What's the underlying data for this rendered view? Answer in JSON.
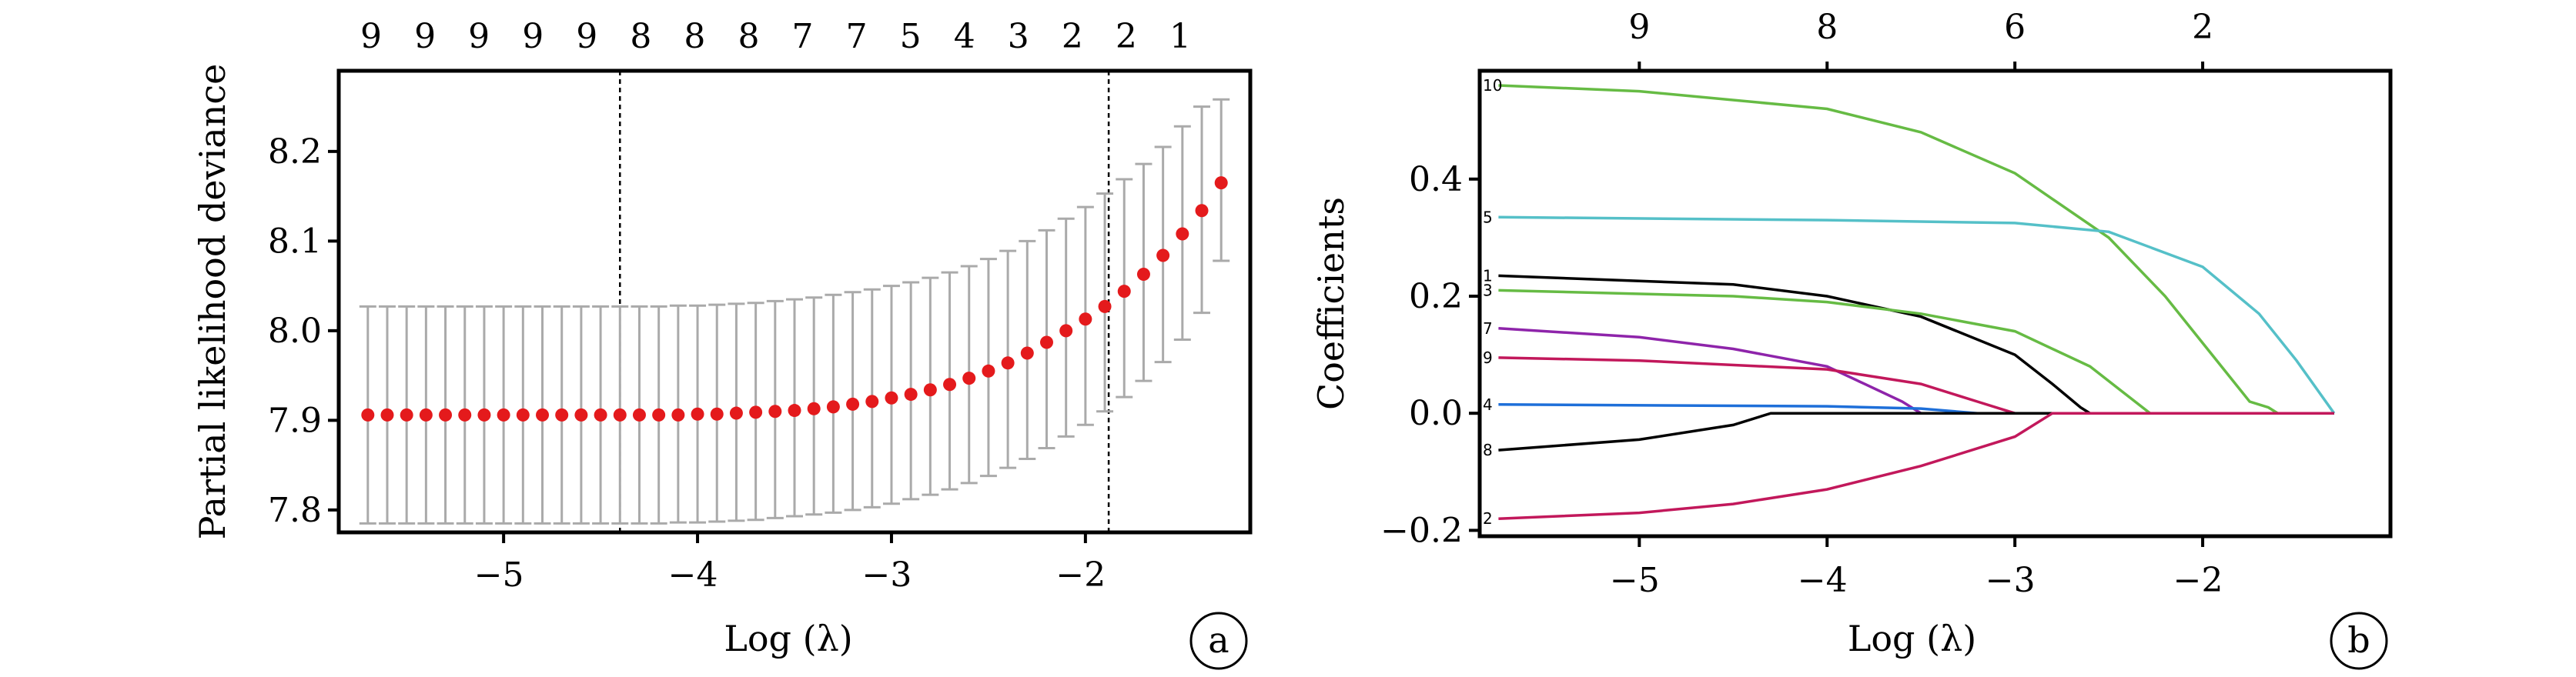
{
  "chart_data": [
    {
      "type": "scatter",
      "panel_label": "a",
      "xlabel": "Log (λ)",
      "ylabel": "Partial likelihood deviance",
      "xlim": [
        -5.85,
        -1.15
      ],
      "ylim": [
        7.775,
        8.29
      ],
      "x_ticks": [
        -5,
        -4,
        -3,
        -2
      ],
      "y_ticks": [
        7.8,
        7.9,
        8.0,
        8.1,
        8.2
      ],
      "top_axis_labels": [
        "9",
        "9",
        "9",
        "9",
        "9",
        "8",
        "8",
        "8",
        "7",
        "7",
        "5",
        "4",
        "3",
        "2",
        "2",
        "1"
      ],
      "vertical_lines": [
        -4.4,
        -1.88
      ],
      "x": [
        -5.7,
        -5.6,
        -5.5,
        -5.4,
        -5.3,
        -5.2,
        -5.1,
        -5.0,
        -4.9,
        -4.8,
        -4.7,
        -4.6,
        -4.5,
        -4.4,
        -4.3,
        -4.2,
        -4.1,
        -4.0,
        -3.9,
        -3.8,
        -3.7,
        -3.6,
        -3.5,
        -3.4,
        -3.3,
        -3.2,
        -3.1,
        -3.0,
        -2.9,
        -2.8,
        -2.7,
        -2.6,
        -2.5,
        -2.4,
        -2.3,
        -2.2,
        -2.1,
        -2.0,
        -1.9,
        -1.8,
        -1.7,
        -1.6,
        -1.5,
        -1.4,
        -1.3
      ],
      "y": [
        7.906,
        7.906,
        7.906,
        7.906,
        7.906,
        7.906,
        7.906,
        7.906,
        7.906,
        7.906,
        7.906,
        7.906,
        7.906,
        7.906,
        7.906,
        7.906,
        7.906,
        7.907,
        7.907,
        7.908,
        7.909,
        7.91,
        7.911,
        7.913,
        7.915,
        7.918,
        7.921,
        7.925,
        7.929,
        7.934,
        7.94,
        7.947,
        7.955,
        7.964,
        7.975,
        7.987,
        8.0,
        8.013,
        8.027,
        8.044,
        8.063,
        8.084,
        8.108,
        8.134,
        8.165
      ],
      "err_low": [
        7.785,
        7.785,
        7.785,
        7.785,
        7.785,
        7.785,
        7.785,
        7.785,
        7.785,
        7.785,
        7.785,
        7.785,
        7.785,
        7.785,
        7.785,
        7.785,
        7.786,
        7.786,
        7.787,
        7.788,
        7.789,
        7.791,
        7.793,
        7.795,
        7.797,
        7.8,
        7.803,
        7.807,
        7.812,
        7.817,
        7.823,
        7.83,
        7.838,
        7.847,
        7.857,
        7.869,
        7.882,
        7.895,
        7.91,
        7.926,
        7.944,
        7.965,
        7.99,
        8.02,
        8.078
      ],
      "err_high": [
        8.027,
        8.027,
        8.027,
        8.027,
        8.027,
        8.027,
        8.027,
        8.027,
        8.027,
        8.027,
        8.027,
        8.027,
        8.027,
        8.027,
        8.027,
        8.027,
        8.028,
        8.028,
        8.029,
        8.03,
        8.031,
        8.033,
        8.035,
        8.037,
        8.04,
        8.043,
        8.046,
        8.05,
        8.054,
        8.059,
        8.065,
        8.072,
        8.08,
        8.089,
        8.1,
        8.112,
        8.125,
        8.138,
        8.153,
        8.169,
        8.186,
        8.205,
        8.228,
        8.25,
        8.258
      ],
      "marker_color": "#e41a1c",
      "errorbar_color": "#aaaaaa"
    },
    {
      "type": "line",
      "panel_label": "b",
      "xlabel": "Log (λ)",
      "ylabel": "Coefficients",
      "xlim": [
        -5.85,
        -1.0
      ],
      "ylim": [
        -0.21,
        0.585
      ],
      "x_ticks": [
        -5,
        -4,
        -3,
        -2
      ],
      "y_ticks": [
        -0.2,
        0.0,
        0.2,
        0.4
      ],
      "y_tick_labels": [
        "−0.2",
        "0.0",
        "0.2",
        "0.4"
      ],
      "top_axis_ticks": [
        -5,
        -4,
        -3,
        -2
      ],
      "top_axis_labels": [
        "9",
        "8",
        "6",
        "2"
      ],
      "series": [
        {
          "name": "10",
          "color": "#66bb44",
          "points": [
            [
              -5.75,
              0.56
            ],
            [
              -5.0,
              0.55
            ],
            [
              -4.0,
              0.52
            ],
            [
              -3.5,
              0.48
            ],
            [
              -3.0,
              0.41
            ],
            [
              -2.5,
              0.3
            ],
            [
              -2.2,
              0.2
            ],
            [
              -1.95,
              0.1
            ],
            [
              -1.75,
              0.02
            ],
            [
              -1.65,
              0.01
            ],
            [
              -1.6,
              0.0
            ],
            [
              -1.3,
              0.0
            ]
          ]
        },
        {
          "name": "5",
          "color": "#55c0c8",
          "points": [
            [
              -5.75,
              0.335
            ],
            [
              -4.0,
              0.33
            ],
            [
              -3.0,
              0.325
            ],
            [
              -2.5,
              0.31
            ],
            [
              -2.0,
              0.25
            ],
            [
              -1.7,
              0.17
            ],
            [
              -1.5,
              0.09
            ],
            [
              -1.3,
              0.0
            ]
          ]
        },
        {
          "name": "1",
          "color": "#000000",
          "points": [
            [
              -5.75,
              0.235
            ],
            [
              -4.5,
              0.22
            ],
            [
              -4.0,
              0.2
            ],
            [
              -3.5,
              0.165
            ],
            [
              -3.0,
              0.1
            ],
            [
              -2.8,
              0.05
            ],
            [
              -2.65,
              0.01
            ],
            [
              -2.6,
              0.0
            ],
            [
              -1.3,
              0.0
            ]
          ]
        },
        {
          "name": "3",
          "color": "#66bb44",
          "points": [
            [
              -5.75,
              0.21
            ],
            [
              -4.5,
              0.2
            ],
            [
              -4.0,
              0.19
            ],
            [
              -3.5,
              0.17
            ],
            [
              -3.0,
              0.14
            ],
            [
              -2.6,
              0.08
            ],
            [
              -2.4,
              0.03
            ],
            [
              -2.28,
              0.0
            ],
            [
              -1.3,
              0.0
            ]
          ]
        },
        {
          "name": "7",
          "color": "#8e24aa",
          "points": [
            [
              -5.75,
              0.145
            ],
            [
              -5.0,
              0.13
            ],
            [
              -4.5,
              0.11
            ],
            [
              -4.0,
              0.08
            ],
            [
              -3.8,
              0.05
            ],
            [
              -3.6,
              0.02
            ],
            [
              -3.5,
              0.0
            ],
            [
              -1.3,
              0.0
            ]
          ]
        },
        {
          "name": "9",
          "color": "#c2185b",
          "points": [
            [
              -5.75,
              0.095
            ],
            [
              -5.0,
              0.09
            ],
            [
              -4.0,
              0.075
            ],
            [
              -3.5,
              0.05
            ],
            [
              -3.2,
              0.02
            ],
            [
              -3.0,
              0.0
            ],
            [
              -1.3,
              0.0
            ]
          ]
        },
        {
          "name": "4",
          "color": "#1e6fd9",
          "points": [
            [
              -5.75,
              0.015
            ],
            [
              -4.0,
              0.012
            ],
            [
              -3.5,
              0.008
            ],
            [
              -3.2,
              0.0
            ],
            [
              -1.3,
              0.0
            ]
          ]
        },
        {
          "name": "8",
          "color": "#000000",
          "points": [
            [
              -5.75,
              -0.063
            ],
            [
              -5.0,
              -0.045
            ],
            [
              -4.5,
              -0.02
            ],
            [
              -4.3,
              0.0
            ],
            [
              -1.3,
              0.0
            ]
          ]
        },
        {
          "name": "2",
          "color": "#c2185b",
          "points": [
            [
              -5.75,
              -0.18
            ],
            [
              -5.0,
              -0.17
            ],
            [
              -4.5,
              -0.155
            ],
            [
              -4.0,
              -0.13
            ],
            [
              -3.5,
              -0.09
            ],
            [
              -3.0,
              -0.04
            ],
            [
              -2.8,
              0.0
            ],
            [
              -1.3,
              0.0
            ]
          ]
        }
      ]
    }
  ]
}
